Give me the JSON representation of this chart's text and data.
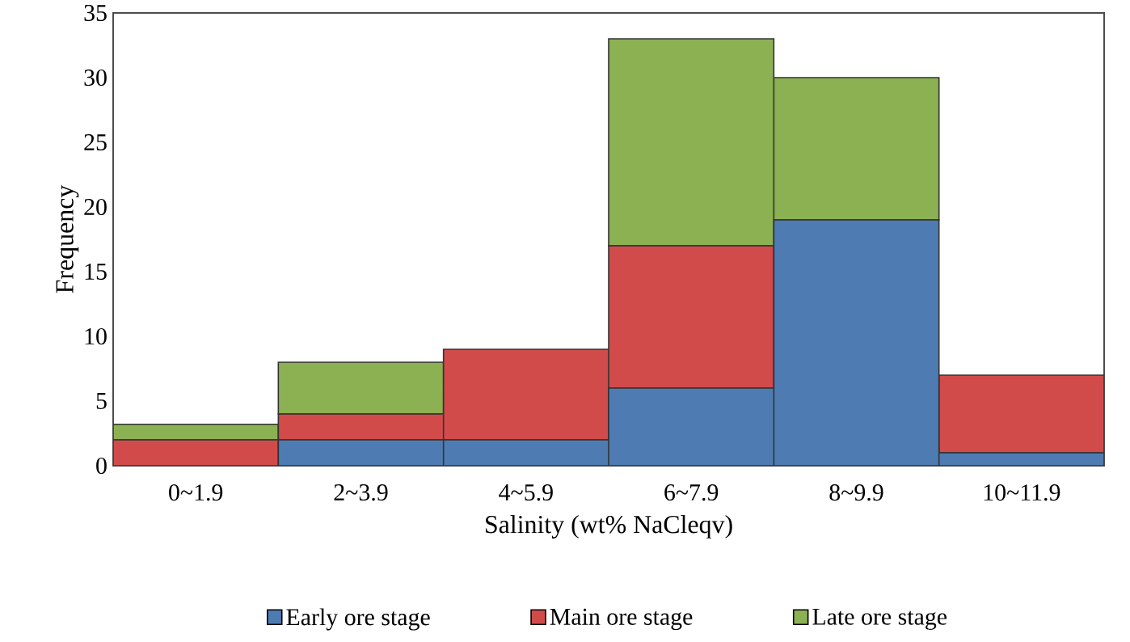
{
  "chart_data": {
    "type": "bar",
    "stacked": true,
    "xlabel": "Salinity (wt% NaCleqv)",
    "ylabel": "Frequency",
    "categories": [
      "0~1.9",
      "2~3.9",
      "4~5.9",
      "6~7.9",
      "8~9.9",
      "10~11.9"
    ],
    "series": [
      {
        "name": "Early ore stage",
        "color": "#4f7bb3",
        "values": [
          0,
          2,
          2,
          6,
          19,
          1
        ]
      },
      {
        "name": "Main ore stage",
        "color": "#d24b4b",
        "values": [
          2,
          2,
          7,
          11,
          0,
          6
        ]
      },
      {
        "name": "Late ore stage",
        "color": "#8bb153",
        "values": [
          1.2,
          4,
          0,
          16,
          11,
          0
        ]
      }
    ],
    "ylim": [
      0,
      35
    ],
    "yticks": [
      0,
      5,
      10,
      15,
      20,
      25,
      30,
      35
    ],
    "grid": false,
    "legend": "bottom"
  }
}
